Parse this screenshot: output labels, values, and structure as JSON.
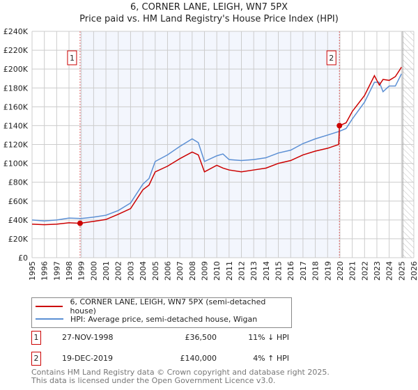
{
  "chart_data": {
    "type": "line",
    "title": "6, CORNER LANE, LEIGH, WN7 5PX",
    "subtitle": "Price paid vs. HM Land Registry's House Price Index (HPI)",
    "xlim": [
      1995,
      2026
    ],
    "ylim": [
      0,
      240000
    ],
    "x_ticks": [
      "1995",
      "1996",
      "1997",
      "1998",
      "1999",
      "2000",
      "2001",
      "2002",
      "2003",
      "2004",
      "2005",
      "2006",
      "2007",
      "2008",
      "2009",
      "2010",
      "2011",
      "2012",
      "2013",
      "2014",
      "2015",
      "2016",
      "2017",
      "2018",
      "2019",
      "2020",
      "2021",
      "2022",
      "2023",
      "2024",
      "2025",
      "2026"
    ],
    "y_ticks": [
      {
        "v": 0,
        "label": "£0"
      },
      {
        "v": 20000,
        "label": "£20K"
      },
      {
        "v": 40000,
        "label": "£40K"
      },
      {
        "v": 60000,
        "label": "£60K"
      },
      {
        "v": 80000,
        "label": "£80K"
      },
      {
        "v": 100000,
        "label": "£100K"
      },
      {
        "v": 120000,
        "label": "£120K"
      },
      {
        "v": 140000,
        "label": "£140K"
      },
      {
        "v": 160000,
        "label": "£160K"
      },
      {
        "v": 180000,
        "label": "£180K"
      },
      {
        "v": 200000,
        "label": "£200K"
      },
      {
        "v": 220000,
        "label": "£220K"
      },
      {
        "v": 240000,
        "label": "£240K"
      }
    ],
    "grid": true,
    "shaded_range": [
      1998.9,
      2019.96
    ],
    "forecast_hatch_from": 2025.1,
    "series": [
      {
        "name": "6, CORNER LANE, LEIGH, WN7 5PX (semi-detached house)",
        "color": "#cc0000",
        "x": [
          1995,
          1996,
          1997,
          1998,
          1998.9,
          2000,
          2001,
          2002,
          2003,
          2004,
          2004.5,
          2005,
          2006,
          2007,
          2008,
          2008.5,
          2009,
          2010,
          2010.5,
          2011,
          2012,
          2013,
          2014,
          2015,
          2016,
          2017,
          2018,
          2019,
          2019.9,
          2019.96,
          2020.5,
          2021,
          2022,
          2022.8,
          2023.2,
          2023.5,
          2024,
          2024.5,
          2025
        ],
        "y": [
          35500,
          35000,
          35500,
          37000,
          36500,
          38500,
          40500,
          46000,
          52000,
          72000,
          77000,
          91000,
          97000,
          105000,
          112000,
          109000,
          91000,
          98000,
          95000,
          93000,
          91000,
          93000,
          95000,
          100000,
          103000,
          109000,
          113000,
          116000,
          120000,
          140000,
          143000,
          155000,
          172000,
          193000,
          183000,
          189000,
          188000,
          192000,
          202000
        ]
      },
      {
        "name": "HPI: Average price, semi-detached house, Wigan",
        "color": "#5b8fd4",
        "x": [
          1995,
          1996,
          1997,
          1998,
          1999,
          2000,
          2001,
          2002,
          2003,
          2004,
          2004.5,
          2005,
          2006,
          2007,
          2008,
          2008.5,
          2009,
          2010,
          2010.5,
          2011,
          2012,
          2013,
          2014,
          2015,
          2016,
          2017,
          2018,
          2019,
          2019.96,
          2020.5,
          2021,
          2022,
          2022.8,
          2023.2,
          2023.5,
          2024,
          2024.5,
          2025
        ],
        "y": [
          40000,
          39000,
          40000,
          42000,
          41500,
          43000,
          45000,
          50000,
          58000,
          78000,
          84000,
          102000,
          109000,
          118000,
          126000,
          122000,
          102000,
          108000,
          110000,
          104000,
          103000,
          104000,
          106000,
          111000,
          114000,
          121000,
          126000,
          130000,
          134000,
          137000,
          147000,
          165000,
          186000,
          186000,
          176000,
          182000,
          182000,
          195000
        ]
      }
    ],
    "sales": [
      {
        "id": "1",
        "x": 1998.9,
        "y": 36500,
        "date": "27-NOV-1998",
        "price": "£36,500",
        "hpi_diff": "11% ↓ HPI"
      },
      {
        "id": "2",
        "x": 2019.96,
        "y": 140000,
        "date": "19-DEC-2019",
        "price": "£140,000",
        "hpi_diff": "4% ↑ HPI"
      }
    ]
  },
  "footer": {
    "line1": "Contains HM Land Registry data © Crown copyright and database right 2025.",
    "line2": "This data is licensed under the Open Government Licence v3.0."
  }
}
